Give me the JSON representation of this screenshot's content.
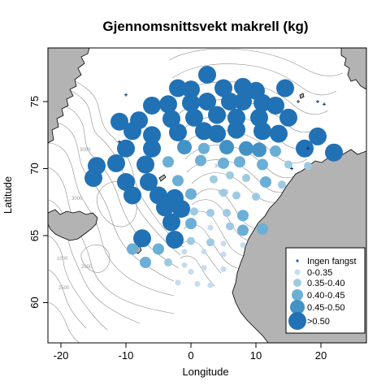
{
  "title": "Gjennomsnittsvekt makrell (kg)",
  "xlabel": "Longitude",
  "ylabel": "Latitude",
  "colors": {
    "c1": "#c6dbef",
    "c2": "#9ecae1",
    "c3": "#6baed6",
    "c4": "#4292c6",
    "c5": "#2171b5",
    "nocatch": "#08306b",
    "land": "#b3b3b3",
    "contour": "#8c8c8c"
  },
  "legend": {
    "position": "bottom-right",
    "items": [
      {
        "label": "Ingen fangst",
        "symbol": "cross",
        "class": 0
      },
      {
        "label": "0-0.35",
        "symbol": "circle",
        "class": 1
      },
      {
        "label": "0.35-0.40",
        "symbol": "circle",
        "class": 2
      },
      {
        "label": "0.40-0.45",
        "symbol": "circle",
        "class": 3
      },
      {
        "label": "0.45-0.50",
        "symbol": "circle",
        "class": 4
      },
      {
        "label": ">0.50",
        "symbol": "circle",
        "class": 5
      }
    ]
  },
  "contour_labels": [
    "3000",
    "3000",
    "1000",
    "2000",
    "2500",
    "3000",
    "3000",
    "2500"
  ],
  "chart_data": {
    "type": "scatter",
    "title": "Gjennomsnittsvekt makrell (kg)",
    "xlabel": "Longitude",
    "ylabel": "Latitude",
    "xlim": [
      -22,
      27
    ],
    "ylim": [
      57,
      79
    ],
    "xticks": [
      "-20",
      "-10",
      "0",
      "10",
      "20"
    ],
    "yticks": [
      "60",
      "65",
      "70",
      "75"
    ],
    "xtick_values": [
      -20,
      -10,
      0,
      10,
      20
    ],
    "ytick_values": [
      60,
      65,
      70,
      75
    ],
    "grid": false,
    "classes": [
      "Ingen fangst",
      "0-0.35",
      "0.35-0.40",
      "0.40-0.45",
      "0.45-0.50",
      ">0.50"
    ],
    "stations": [
      {
        "lon": 2.5,
        "lat": 77.0,
        "cls": 5
      },
      {
        "lon": -2.0,
        "lat": 76.0,
        "cls": 5
      },
      {
        "lon": 0.0,
        "lat": 75.9,
        "cls": 5
      },
      {
        "lon": 5.0,
        "lat": 76.0,
        "cls": 5
      },
      {
        "lon": 8.0,
        "lat": 76.1,
        "cls": 5
      },
      {
        "lon": 10.0,
        "lat": 75.8,
        "cls": 5
      },
      {
        "lon": 14.5,
        "lat": 76.0,
        "cls": 5
      },
      {
        "lon": -6.0,
        "lat": 74.7,
        "cls": 5
      },
      {
        "lon": -3.5,
        "lat": 74.8,
        "cls": 5
      },
      {
        "lon": 0.0,
        "lat": 74.9,
        "cls": 5
      },
      {
        "lon": 2.5,
        "lat": 75.0,
        "cls": 5
      },
      {
        "lon": 6.0,
        "lat": 75.0,
        "cls": 5
      },
      {
        "lon": 8.0,
        "lat": 75.0,
        "cls": 5
      },
      {
        "lon": 11.0,
        "lat": 74.9,
        "cls": 5
      },
      {
        "lon": 13.0,
        "lat": 74.7,
        "cls": 5
      },
      {
        "lon": -11.0,
        "lat": 73.5,
        "cls": 5
      },
      {
        "lon": -8.0,
        "lat": 73.6,
        "cls": 5
      },
      {
        "lon": -3.0,
        "lat": 73.7,
        "cls": 5
      },
      {
        "lon": 0.5,
        "lat": 73.8,
        "cls": 5
      },
      {
        "lon": 4.0,
        "lat": 74.0,
        "cls": 5
      },
      {
        "lon": 7.0,
        "lat": 73.8,
        "cls": 5
      },
      {
        "lon": 10.5,
        "lat": 73.8,
        "cls": 5
      },
      {
        "lon": 15.0,
        "lat": 73.8,
        "cls": 5
      },
      {
        "lon": -9.0,
        "lat": 72.8,
        "cls": 5
      },
      {
        "lon": -6.0,
        "lat": 72.5,
        "cls": 5
      },
      {
        "lon": -2.0,
        "lat": 72.7,
        "cls": 5
      },
      {
        "lon": 2.0,
        "lat": 72.8,
        "cls": 5
      },
      {
        "lon": 4.0,
        "lat": 72.6,
        "cls": 5
      },
      {
        "lon": 7.0,
        "lat": 72.9,
        "cls": 5
      },
      {
        "lon": 11.0,
        "lat": 72.8,
        "cls": 5
      },
      {
        "lon": 13.5,
        "lat": 72.6,
        "cls": 5
      },
      {
        "lon": 19.5,
        "lat": 72.4,
        "cls": 5
      },
      {
        "lon": -10.0,
        "lat": 71.5,
        "cls": 5
      },
      {
        "lon": -6.0,
        "lat": 71.5,
        "cls": 5
      },
      {
        "lon": -1.0,
        "lat": 71.6,
        "cls": 4
      },
      {
        "lon": 2.0,
        "lat": 71.5,
        "cls": 3
      },
      {
        "lon": 5.5,
        "lat": 71.6,
        "cls": 4
      },
      {
        "lon": 8.5,
        "lat": 71.5,
        "cls": 4
      },
      {
        "lon": 10.5,
        "lat": 71.4,
        "cls": 4
      },
      {
        "lon": 13.0,
        "lat": 71.3,
        "cls": 3
      },
      {
        "lon": 17.5,
        "lat": 71.5,
        "cls": 5
      },
      {
        "lon": 22.0,
        "lat": 71.2,
        "cls": 5
      },
      {
        "lon": -14.5,
        "lat": 70.2,
        "cls": 5
      },
      {
        "lon": -11.5,
        "lat": 70.4,
        "cls": 5
      },
      {
        "lon": -7.0,
        "lat": 70.3,
        "cls": 5
      },
      {
        "lon": -3.5,
        "lat": 70.5,
        "cls": 3
      },
      {
        "lon": 1.5,
        "lat": 70.6,
        "cls": 3
      },
      {
        "lon": 5.0,
        "lat": 70.4,
        "cls": 3
      },
      {
        "lon": 7.5,
        "lat": 70.5,
        "cls": 3
      },
      {
        "lon": 11.0,
        "lat": 70.3,
        "cls": 3
      },
      {
        "lon": 15.0,
        "lat": 70.3,
        "cls": 2
      },
      {
        "lon": 18.0,
        "lat": 70.2,
        "cls": 2
      },
      {
        "lon": -15.0,
        "lat": 69.3,
        "cls": 5
      },
      {
        "lon": -10.0,
        "lat": 69.0,
        "cls": 5
      },
      {
        "lon": -6.5,
        "lat": 69.0,
        "cls": 5
      },
      {
        "lon": -2.0,
        "lat": 69.1,
        "cls": 3
      },
      {
        "lon": 3.5,
        "lat": 69.2,
        "cls": 2
      },
      {
        "lon": 6.0,
        "lat": 69.5,
        "cls": 2
      },
      {
        "lon": 8.5,
        "lat": 69.3,
        "cls": 2
      },
      {
        "lon": 11.5,
        "lat": 69.0,
        "cls": 3
      },
      {
        "lon": 14.0,
        "lat": 68.8,
        "cls": 2
      },
      {
        "lon": -9.0,
        "lat": 68.0,
        "cls": 5
      },
      {
        "lon": -5.0,
        "lat": 68.0,
        "cls": 5
      },
      {
        "lon": -2.5,
        "lat": 67.8,
        "cls": 5
      },
      {
        "lon": 0.0,
        "lat": 68.1,
        "cls": 3
      },
      {
        "lon": 5.0,
        "lat": 68.2,
        "cls": 2
      },
      {
        "lon": 7.0,
        "lat": 68.0,
        "cls": 2
      },
      {
        "lon": 10.0,
        "lat": 67.9,
        "cls": 2
      },
      {
        "lon": -4.0,
        "lat": 67.1,
        "cls": 5
      },
      {
        "lon": -1.5,
        "lat": 67.0,
        "cls": 5
      },
      {
        "lon": 0.5,
        "lat": 66.8,
        "cls": 2
      },
      {
        "lon": 3.0,
        "lat": 66.7,
        "cls": 2
      },
      {
        "lon": 5.5,
        "lat": 66.7,
        "cls": 2
      },
      {
        "lon": 8.0,
        "lat": 66.5,
        "cls": 3
      },
      {
        "lon": -3.0,
        "lat": 66.0,
        "cls": 5
      },
      {
        "lon": 0.0,
        "lat": 65.9,
        "cls": 3
      },
      {
        "lon": 3.0,
        "lat": 65.6,
        "cls": 1
      },
      {
        "lon": 6.0,
        "lat": 65.7,
        "cls": 2
      },
      {
        "lon": 8.0,
        "lat": 65.4,
        "cls": 3
      },
      {
        "lon": 11.0,
        "lat": 65.5,
        "cls": 3
      },
      {
        "lon": -7.5,
        "lat": 64.8,
        "cls": 5
      },
      {
        "lon": -2.5,
        "lat": 64.7,
        "cls": 5
      },
      {
        "lon": 0.0,
        "lat": 64.6,
        "cls": 2
      },
      {
        "lon": 3.0,
        "lat": 64.5,
        "cls": 2
      },
      {
        "lon": 5.0,
        "lat": 64.4,
        "cls": 1
      },
      {
        "lon": 8.0,
        "lat": 64.3,
        "cls": 1
      },
      {
        "lon": -9.0,
        "lat": 64.0,
        "cls": 3
      },
      {
        "lon": -5.0,
        "lat": 64.0,
        "cls": 3
      },
      {
        "lon": -1.0,
        "lat": 63.8,
        "cls": 1
      },
      {
        "lon": 2.0,
        "lat": 63.8,
        "cls": 1
      },
      {
        "lon": 5.0,
        "lat": 63.6,
        "cls": 1
      },
      {
        "lon": -7.0,
        "lat": 63.0,
        "cls": 3
      },
      {
        "lon": -3.5,
        "lat": 63.0,
        "cls": 2
      },
      {
        "lon": -1.0,
        "lat": 62.8,
        "cls": 1
      },
      {
        "lon": 2.0,
        "lat": 62.6,
        "cls": 1
      },
      {
        "lon": 5.0,
        "lat": 62.5,
        "cls": 1
      },
      {
        "lon": 0.0,
        "lat": 62.3,
        "cls": 1
      },
      {
        "lon": -2.0,
        "lat": 61.5,
        "cls": 1
      },
      {
        "lon": 1.0,
        "lat": 61.4,
        "cls": 1
      },
      {
        "lon": 3.0,
        "lat": 61.3,
        "cls": 1
      },
      {
        "lon": -10.0,
        "lat": 75.5,
        "cls": 0
      },
      {
        "lon": -11.0,
        "lat": 72.0,
        "cls": 0
      },
      {
        "lon": 16.5,
        "lat": 75.0,
        "cls": 0
      },
      {
        "lon": 19.5,
        "lat": 75.0,
        "cls": 0
      },
      {
        "lon": 20.5,
        "lat": 74.8,
        "cls": 0
      },
      {
        "lon": 18.0,
        "lat": 71.5,
        "cls": 0
      },
      {
        "lon": 15.5,
        "lat": 70.0,
        "cls": 0
      }
    ]
  }
}
